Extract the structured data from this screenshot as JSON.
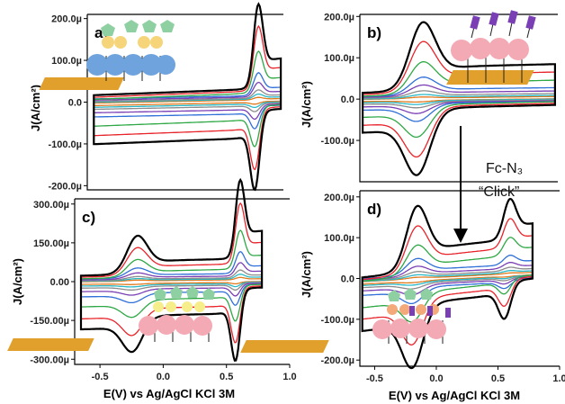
{
  "figure": {
    "x_axis_label": "E(V) vs Ag/AgCl KCl 3M",
    "y_axis_label": "J(A/cm²)",
    "annotation_line1": "Fc-N₃",
    "annotation_line2": "“Click”"
  },
  "colors": {
    "black": "#000000",
    "red": "#e8232a",
    "green": "#2ea844",
    "blue": "#2f6fd8",
    "purple": "#7a3fb5",
    "gray": "#8c8c8c",
    "cyan": "#29b8c6",
    "orange": "#e07a1f"
  },
  "icons": [
    "electrode-surface-icon",
    "pentagon-molecule-icon",
    "sphere-molecule-icon",
    "arrow-down-icon"
  ],
  "chart_data": [
    {
      "type": "line",
      "panel_label": "a)",
      "xlabel": "",
      "ylabel": "J(A/cm²)",
      "xlim": [
        -0.7,
        0.8
      ],
      "ylim": [
        -0.00021,
        0.00021
      ],
      "yticks": [
        0.0002,
        0.0001,
        0,
        -0.0001,
        -0.0002
      ],
      "yticklabels": [
        "200.0µ",
        "100.0µ",
        "0.0",
        "-100.0µ",
        "-200.0µ"
      ],
      "show_xticks": false,
      "series_colors": [
        "#000000",
        "#e8232a",
        "#2ea844",
        "#2f6fd8",
        "#7a3fb5",
        "#8c8c8c",
        "#29b8c6",
        "#e07a1f"
      ],
      "peaks": [
        {
          "e": 0.61,
          "w": 0.035,
          "anodic": [
            0.000203,
            0.000155,
            0.0001,
            5.5e-05,
            3.5e-05,
            2e-05,
            1.2e-05,
            6e-06
          ]
        },
        {
          "e": 0.58,
          "w": 0.035,
          "cathodic": [
            -0.000192,
            -0.000148,
            -9.8e-05,
            -5.5e-05,
            -3.5e-05,
            -2e-05,
            -1.2e-05,
            -6e-06
          ]
        }
      ],
      "background": [
        2.5e-05,
        2e-05,
        1.5e-05,
        1.2e-05,
        9e-06,
        6e-06,
        4e-06,
        2e-06
      ],
      "slope": 1.2e-05
    },
    {
      "type": "line",
      "panel_label": "b)",
      "xlabel": "",
      "ylabel": "J(A/cm²)",
      "xlim": [
        -0.6,
        0.8
      ],
      "ylim": [
        -0.0002,
        0.000205
      ],
      "yticks": [
        0.0002,
        0.0001,
        0,
        -0.0001
      ],
      "yticklabels": [
        "200.0µ",
        "100.0µ",
        "0.0",
        "-100.0µ"
      ],
      "show_xticks": false,
      "series_colors": [
        "#000000",
        "#e8232a",
        "#2ea844",
        "#2f6fd8",
        "#7a3fb5",
        "#8c8c8c",
        "#29b8c6",
        "#e07a1f"
      ],
      "peaks": [
        {
          "e": -0.15,
          "w": 0.09,
          "anodic": [
            0.000168,
            0.000125,
            8e-05,
            4.5e-05,
            2.8e-05,
            1.6e-05,
            9e-06,
            4e-06
          ]
        },
        {
          "e": -0.2,
          "w": 0.09,
          "cathodic": [
            -0.000162,
            -0.000122,
            -7.8e-05,
            -4.4e-05,
            -2.7e-05,
            -1.5e-05,
            -9e-06,
            -4e-06
          ]
        }
      ],
      "background": [
        2e-05,
        1.6e-05,
        1.2e-05,
        9e-06,
        7e-06,
        5e-06,
        3e-06,
        2e-06
      ],
      "slope": 8e-06
    },
    {
      "type": "line",
      "panel_label": "c)",
      "xlabel": "E(V) vs Ag/AgCl KCl 3M",
      "ylabel": "J(A/cm²)",
      "xlim": [
        -0.7,
        1.0
      ],
      "ylim": [
        -0.00032,
        0.00032
      ],
      "yticks": [
        0.0003,
        0.00015,
        0,
        -0.00015,
        -0.0003
      ],
      "yticklabels": [
        "300.00µ",
        "150.00µ",
        "0.00",
        "-150.00µ",
        "-300.00µ"
      ],
      "xticks": [
        -0.5,
        0.0,
        0.5,
        1.0
      ],
      "xticklabels": [
        "-0.5",
        "0.0",
        "0.5",
        "1.0"
      ],
      "show_xticks": true,
      "series_colors": [
        "#000000",
        "#e8232a",
        "#2ea844",
        "#2f6fd8",
        "#7a3fb5",
        "#8c8c8c",
        "#29b8c6",
        "#e07a1f"
      ],
      "peaks": [
        {
          "e": -0.2,
          "w": 0.08,
          "anodic": [
            0.00015,
            0.00011,
            7e-05,
            4e-05,
            2.5e-05,
            1.4e-05,
            8e-06,
            4e-06
          ]
        },
        {
          "e": -0.25,
          "w": 0.08,
          "cathodic": [
            -0.00014,
            -0.000105,
            -6.8e-05,
            -3.8e-05,
            -2.4e-05,
            -1.4e-05,
            -8e-06,
            -4e-06
          ]
        },
        {
          "e": 0.61,
          "w": 0.035,
          "anodic": [
            0.000305,
            0.000235,
            0.00015,
            8.5e-05,
            5.2e-05,
            3e-05,
            1.8e-05,
            9e-06
          ]
        },
        {
          "e": 0.57,
          "w": 0.035,
          "cathodic": [
            -0.000282,
            -0.000218,
            -0.00014,
            -8e-05,
            -4.8e-05,
            -2.8e-05,
            -1.7e-05,
            -8e-06
          ]
        }
      ],
      "background": [
        3e-05,
        2.4e-05,
        1.8e-05,
        1.4e-05,
        1e-05,
        7e-06,
        5e-06,
        3e-06
      ],
      "slope": 1e-05
    },
    {
      "type": "line",
      "panel_label": "d)",
      "xlabel": "E(V) vs Ag/AgCl KCl 3M",
      "ylabel": "J(A/cm²)",
      "xlim": [
        -0.62,
        1.0
      ],
      "ylim": [
        -0.000215,
        0.000215
      ],
      "yticks": [
        0.0002,
        0.0001,
        0,
        -0.0001,
        -0.0002
      ],
      "yticklabels": [
        "200.0µ",
        "100.0µ",
        "0.0",
        "-100.0µ",
        "-200.0µ"
      ],
      "xticks": [
        -0.5,
        0.0,
        0.5,
        1.0
      ],
      "xticklabels": [
        "-0.5",
        "0.0",
        "0.5",
        "1.0"
      ],
      "show_xticks": true,
      "series_colors": [
        "#000000",
        "#e8232a",
        "#2ea844",
        "#2f6fd8",
        "#7a3fb5",
        "#8c8c8c",
        "#29b8c6",
        "#e07a1f"
      ],
      "peaks": [
        {
          "e": -0.15,
          "w": 0.085,
          "anodic": [
            0.000162,
            0.000118,
            7.5e-05,
            4.2e-05,
            2.6e-05,
            1.5e-05,
            9e-06,
            4e-06
          ]
        },
        {
          "e": -0.2,
          "w": 0.085,
          "cathodic": [
            -0.000158,
            -0.000115,
            -7.2e-05,
            -4e-05,
            -2.5e-05,
            -1.4e-05,
            -8e-06,
            -4e-06
          ]
        },
        {
          "e": 0.6,
          "w": 0.05,
          "anodic": [
            0.0001,
            7.2e-05,
            4.5e-05,
            2.4e-05,
            1.5e-05,
            9e-06,
            5e-06,
            2e-06
          ]
        },
        {
          "e": 0.55,
          "w": 0.05,
          "cathodic": [
            -9.2e-05,
            -6.6e-05,
            -4e-05,
            -2.2e-05,
            -1.4e-05,
            -8e-06,
            -5e-06,
            -2e-06
          ]
        }
      ],
      "background": [
        2.2e-05,
        1.7e-05,
        1.3e-05,
        1e-05,
        7e-06,
        5e-06,
        3e-06,
        2e-06
      ],
      "slope": 3e-05
    }
  ]
}
